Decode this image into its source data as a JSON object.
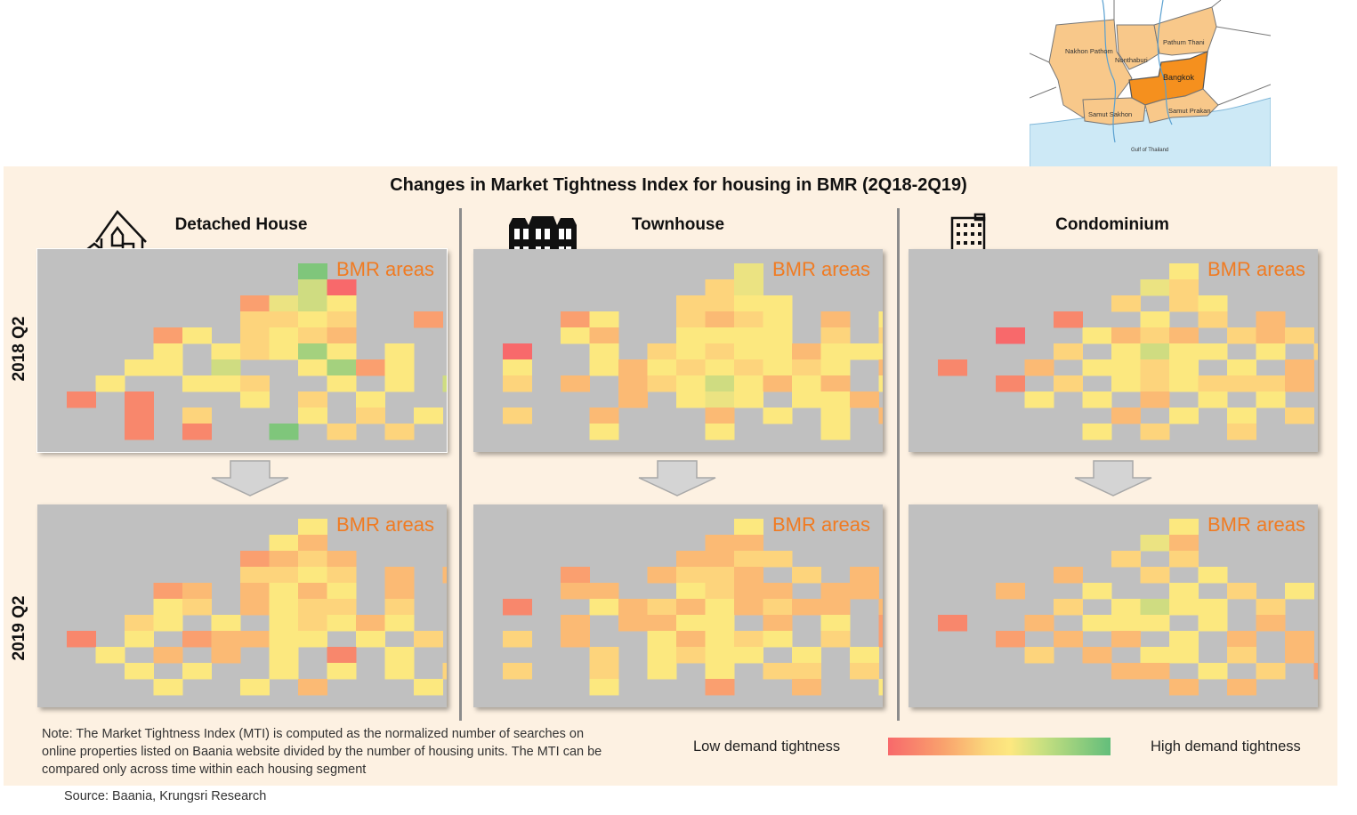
{
  "chart_data": {
    "type": "heatmap",
    "title": "Changes in Market Tightness Index for housing in BMR (2Q18-2Q19)",
    "segments": [
      "Detached House",
      "Townhouse",
      "Condominium"
    ],
    "periods": [
      "2018 Q2",
      "2019 Q2"
    ],
    "panel_label": "BMR areas",
    "scale": {
      "low_label": "Low demand tightness",
      "high_label": "High demand tightness",
      "colors": [
        "#f8696b",
        "#f9a26d",
        "#fbd97c",
        "#fde880",
        "#c6df80",
        "#63be7b"
      ]
    },
    "value_encoding": "0 = low demand tightness (red) ... 100 = high demand tightness (green)",
    "grids": [
      {
        "segment": "Detached House",
        "period": "2018 Q2",
        "rows": [
          "........9.......",
          "........70......",
          "......2675......",
          "......4454..2...",
          "...25.4543......",
          "...5.54585.5....",
          "..55.7..5825....",
          ".5..554..5.5.7..",
          "1.1...5.4.5.....",
          "..1.4...5.4.5.4.",
          "..1.1..9.4.4...5"
        ]
      },
      {
        "segment": "Townhouse",
        "period": "2018 Q2",
        "rows": [
          "........6.......",
          ".......46.......",
          "......4455......",
          "..25..4345.3.5..",
          "..53..5555.4.4..",
          "0..5.454553555..",
          "5..535454545.3..",
          "4.3.34575353.54.",
          "....3.565.553...",
          "4..3...3.5.5.3..",
          "...5...5...5..6."
        ]
      },
      {
        "segment": "Condominium",
        "period": "2018 Q2",
        "rows": [
          "........5.......",
          ".......64.......",
          "......4.45......",
          "....1..5.4.3....",
          "..0..5343.434...",
          "....4.5755.5.4..",
          "1..3.5545.5.3...",
          "..1.4.5454443.3.",
          "...5.5.3.5.5....",
          "......3.5.5.4.3.",
          ".....5.4..4...2."
        ]
      },
      {
        "segment": "Detached House",
        "period": "2019 Q2",
        "rows": [
          "........5.......",
          ".......53.......",
          "......2343......",
          "......4454.3.3..",
          "...23.3535.3....",
          "...54.3544.4....",
          "..45.5.54535....",
          "1.5.23355.5.4.3.",
          ".5.3.3.5.1.5....",
          "..5.5..5.5.5.4..",
          "...5..5.3...5.4."
        ]
      },
      {
        "segment": "Townhouse",
        "period": "2019 Q2",
        "rows": [
          "........5.......",
          ".......33.......",
          "......3344......",
          "..2..3443.4.3...",
          "..33..5433.33...",
          "1..534353433.3..",
          "..3.3355.3.5.2..",
          "4.3..53545.4.2..",
          "...4.5455.5.5...",
          "4..4.5.5.44.4...",
          "...5...2..3..5.."
        ]
      },
      {
        "segment": "Condominium",
        "period": "2019 Q2",
        "rows": [
          "........5.......",
          ".......63.......",
          "......4.4.......",
          "....3..4.5......",
          "..3..5..5.4.5...",
          "....4.5755.4....",
          "1..3.555.5.3....",
          "..2.3.3.5.3.3.3.",
          "...4.3.55.4.3...",
          "......33.5.4.2..",
          "........3.3....1"
        ]
      }
    ]
  },
  "labels": {
    "title": "Changes in Market Tightness Index for housing in BMR (2Q18-2Q19)",
    "seg1": "Detached House",
    "seg2": "Townhouse",
    "seg3": "Condominium",
    "row1": "2018 Q2",
    "row2": "2019 Q2",
    "bmr": "BMR areas"
  },
  "map": {
    "provinces": [
      "Nakhon Pathom",
      "Nonthaburi",
      "Pathum Thani",
      "Bangkok",
      "Samut Sakhon",
      "Samut Prakan"
    ],
    "sea": "Gulf of Thailand",
    "highlight": "Bangkok"
  },
  "note": "Note: The Market Tightness Index (MTI) is computed as the normalized number of searches on online properties listed on Baania website divided by the number of housing units.  The MTI can be compared only across time within each housing segment",
  "legend": {
    "low": "Low demand tightness",
    "high": "High demand tightness"
  },
  "source": "Source: Baania, Krungsri Research"
}
